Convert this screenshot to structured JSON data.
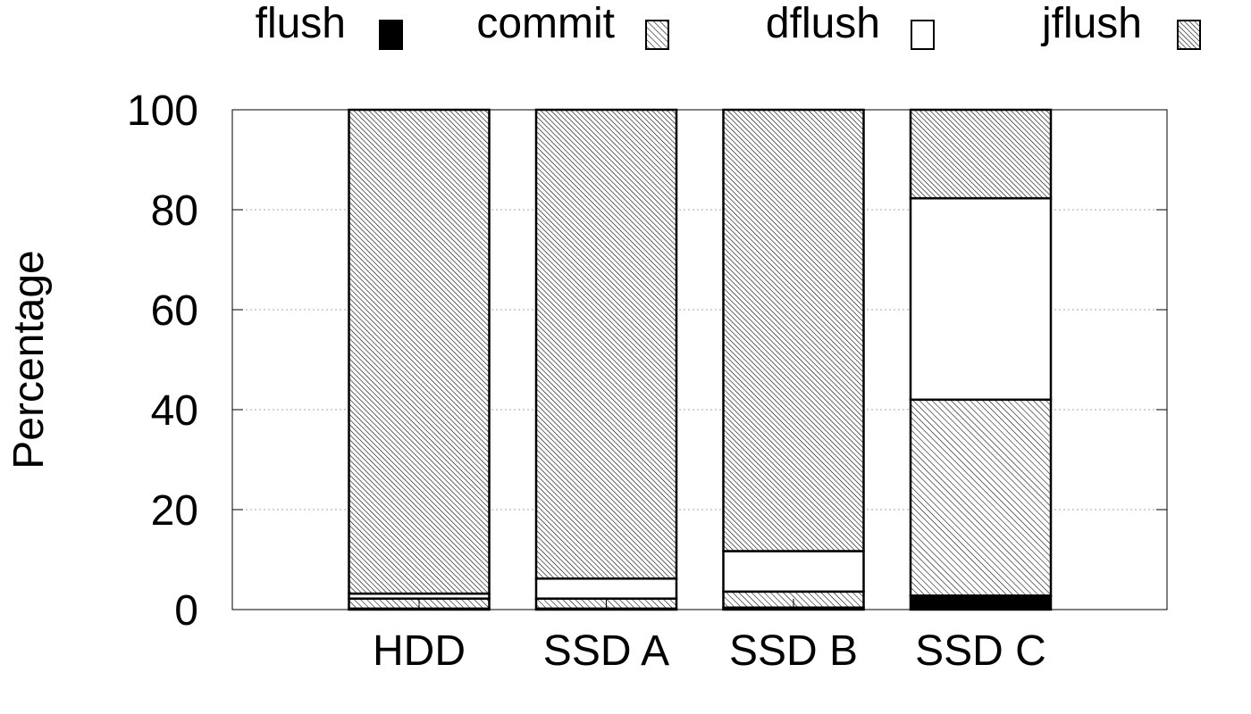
{
  "chart_data": {
    "type": "bar",
    "stacked": true,
    "title": "",
    "xlabel": "",
    "ylabel": "Percentage",
    "ylim": [
      0,
      100
    ],
    "yticks": [
      0,
      20,
      40,
      60,
      80,
      100
    ],
    "categories": [
      "HDD",
      "SSD A",
      "SSD B",
      "SSD C"
    ],
    "legend_position": "top",
    "grid": "horizontal-dotted",
    "series": [
      {
        "name": "flush",
        "fill": "solid",
        "values": [
          0.2,
          0.2,
          0.4,
          2.8
        ]
      },
      {
        "name": "commit",
        "fill": "hatch-fine",
        "values": [
          2.0,
          2.0,
          3.2,
          39.2
        ]
      },
      {
        "name": "dflush",
        "fill": "empty",
        "values": [
          1.0,
          4.0,
          8.1,
          40.3
        ]
      },
      {
        "name": "jflush",
        "fill": "hatch-dense",
        "values": [
          96.8,
          93.8,
          88.3,
          17.7
        ]
      }
    ]
  }
}
